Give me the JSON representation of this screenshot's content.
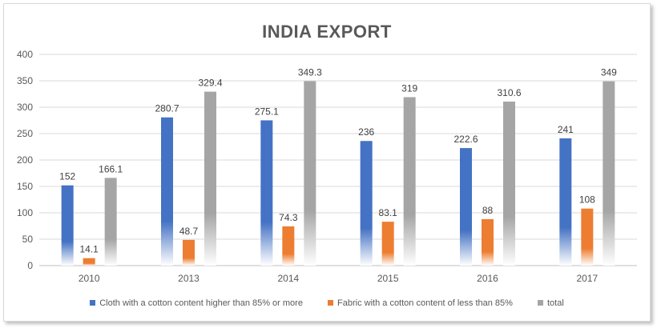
{
  "chart_data": {
    "type": "bar",
    "title": "INDIA EXPORT",
    "categories": [
      "2010",
      "2013",
      "2014",
      "2015",
      "2016",
      "2017"
    ],
    "series": [
      {
        "name": "Cloth with a cotton content higher than 85% or more",
        "color": "#4472c4",
        "values": [
          152,
          280.7,
          275.1,
          236,
          222.6,
          241
        ],
        "labels": [
          "152",
          "280.7",
          "275.1",
          "236",
          "222.6",
          "241"
        ]
      },
      {
        "name": "Fabric with a cotton content of less than 85%",
        "color": "#ed7d31",
        "values": [
          14.1,
          48.7,
          74.3,
          83.1,
          88,
          108
        ],
        "labels": [
          "14.1",
          "48.7",
          "74.3",
          "83.1",
          "88",
          "108"
        ]
      },
      {
        "name": "total",
        "color": "#a5a5a5",
        "values": [
          166.1,
          329.4,
          349.3,
          319,
          310.6,
          349
        ],
        "labels": [
          "166.1",
          "329.4",
          "349.3",
          "319",
          "310.6",
          "349"
        ]
      }
    ],
    "ylim": [
      0,
      400
    ],
    "yticks": [
      "0",
      "50",
      "100",
      "150",
      "200",
      "250",
      "300",
      "350",
      "400"
    ],
    "grid": true,
    "legend_position": "bottom",
    "xlabel": "",
    "ylabel": ""
  }
}
